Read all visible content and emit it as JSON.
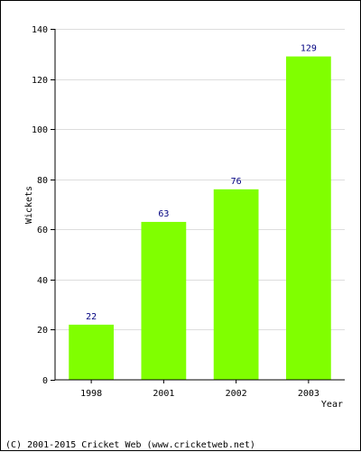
{
  "chart_data": {
    "type": "bar",
    "categories": [
      "1998",
      "2001",
      "2002",
      "2003"
    ],
    "values": [
      22,
      63,
      76,
      129
    ],
    "xlabel": "Year",
    "ylabel": "Wickets",
    "ylim": [
      0,
      140
    ],
    "yticks": [
      0,
      20,
      40,
      60,
      80,
      100,
      120,
      140
    ],
    "grid": true,
    "data_labels": true,
    "colors": {
      "bar": "#80ff00",
      "grid": "#dddddd",
      "axis": "#000000",
      "data_label": "#000080"
    }
  },
  "footer": {
    "copyright": "(C) 2001-2015 Cricket Web (www.cricketweb.net)"
  }
}
